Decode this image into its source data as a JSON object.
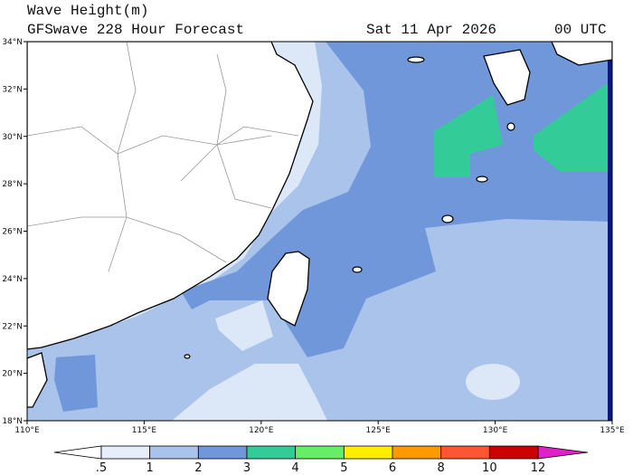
{
  "header": {
    "title": "Wave Height(m)",
    "subtitle": "GFSwave 228 Hour Forecast",
    "date": "Sat 11 Apr 2026",
    "time": "00 UTC"
  },
  "map": {
    "lat_labels": [
      "34°N",
      "32°N",
      "30°N",
      "28°N",
      "26°N",
      "24°N",
      "22°N",
      "20°N",
      "18°N"
    ],
    "lon_labels": [
      "110°E",
      "115°E",
      "120°E",
      "125°E",
      "130°E",
      "135°E"
    ]
  },
  "legend": {
    "labels": [
      ".5",
      "1",
      "2",
      "3",
      "4",
      "5",
      "6",
      "8",
      "10",
      "12"
    ]
  }
}
